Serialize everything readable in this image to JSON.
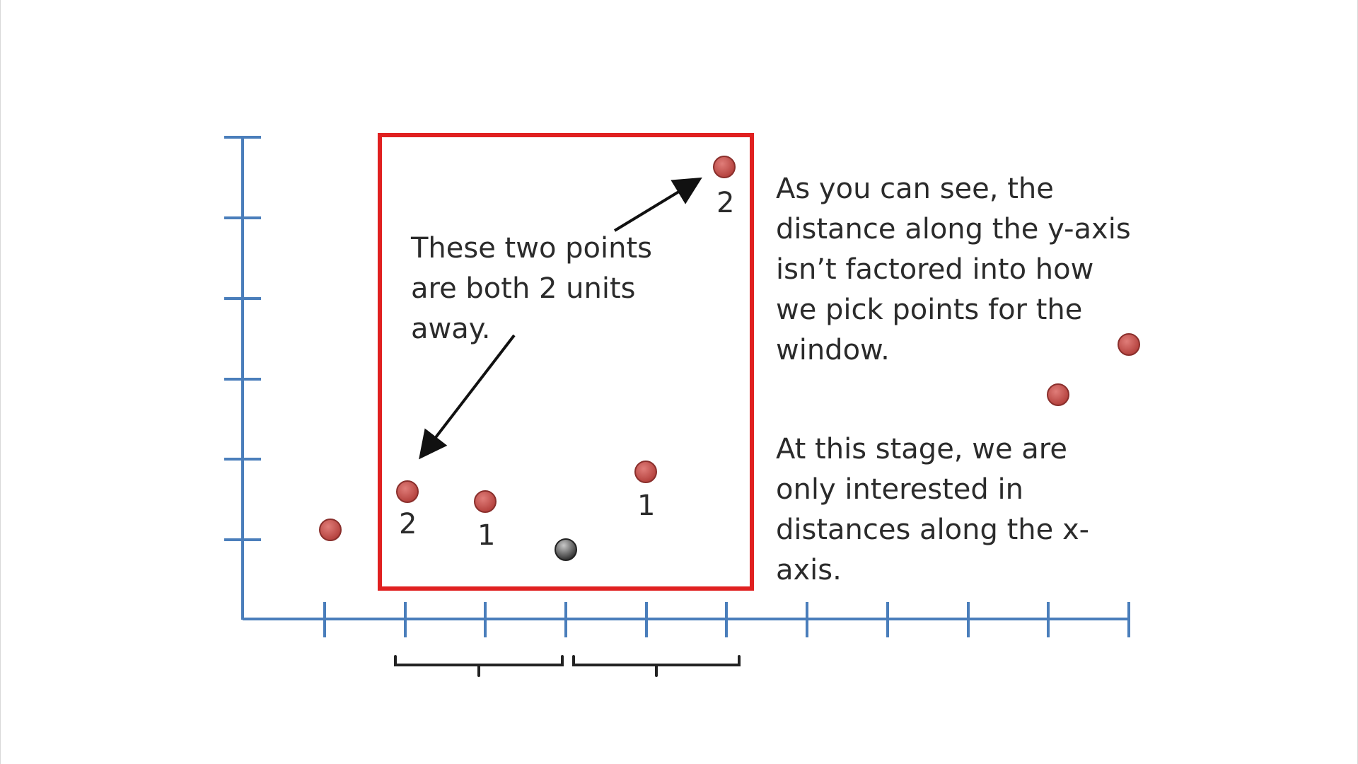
{
  "callout": {
    "lines": [
      "These two points",
      "are both 2 units",
      "away."
    ]
  },
  "explanation": {
    "paragraph1": [
      "As you can see, the",
      "distance along the y-axis",
      "isn’t factored into how",
      "we pick points for the",
      "window."
    ],
    "paragraph2": [
      "At this stage, we are",
      "only interested in",
      "distances along the x-",
      "axis."
    ]
  },
  "point_labels": [
    "2",
    "2",
    "1",
    "1"
  ],
  "colors": {
    "axis": "#4a7ebb",
    "window_border": "#e02020",
    "point_fill": "#c0504d",
    "query_point_fill": "#555555",
    "arrow": "#111111",
    "text": "#2b2b2b"
  },
  "icons": [
    "arrow-icon",
    "bracket-icon"
  ]
}
